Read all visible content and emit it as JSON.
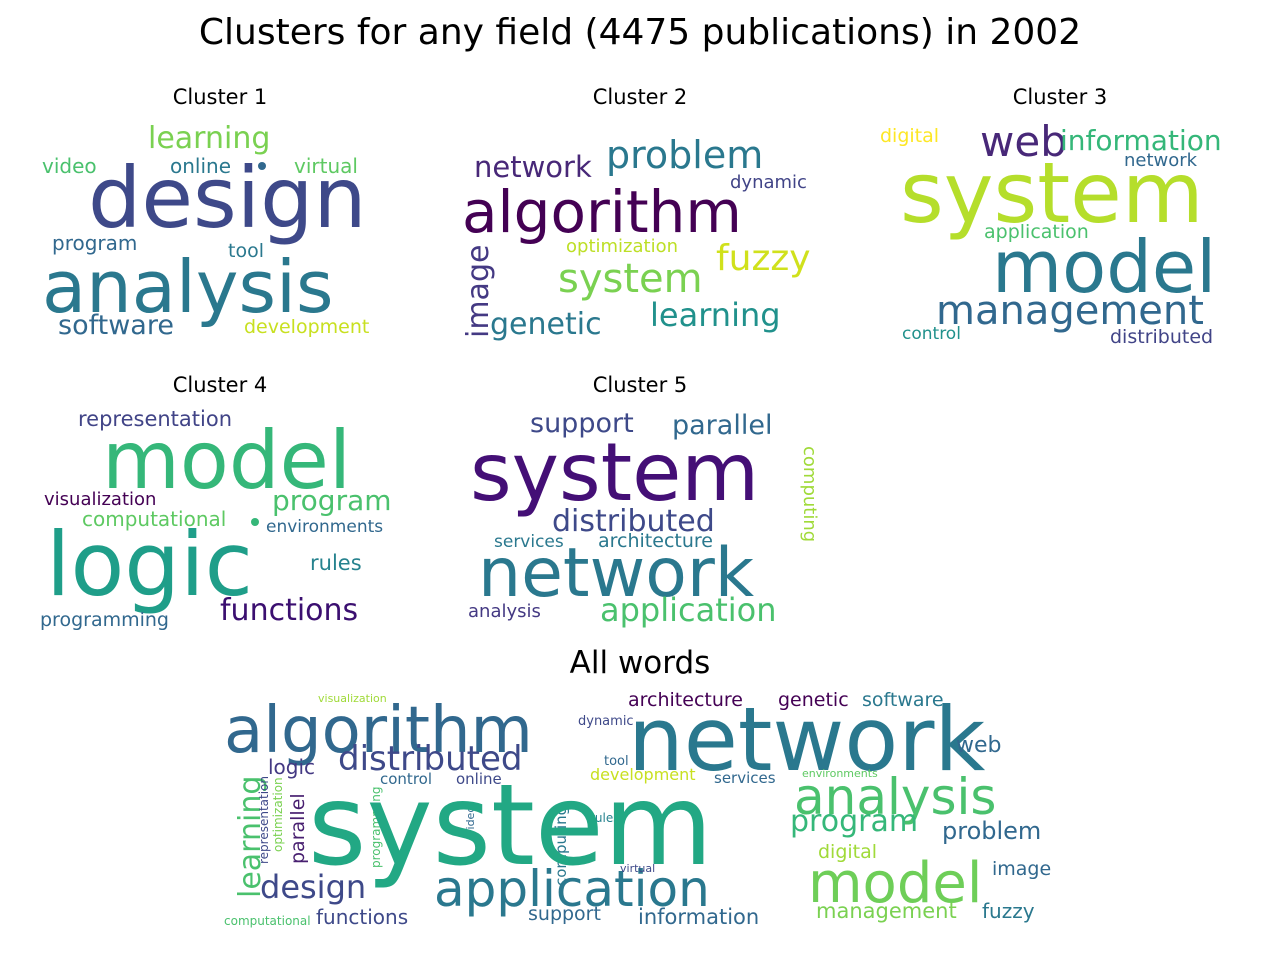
{
  "title": "Clusters for any field (4475 publications) in 2002",
  "panels": [
    {
      "title": "Cluster 1",
      "words": [
        {
          "text": "design",
          "color": "#3e4989"
        },
        {
          "text": "analysis",
          "color": "#2a788e"
        },
        {
          "text": "learning",
          "color": "#7ad151"
        },
        {
          "text": "online",
          "color": "#2a788e"
        },
        {
          "text": "video",
          "color": "#4ac16d"
        },
        {
          "text": "virtual",
          "color": "#5ec962"
        },
        {
          "text": "program",
          "color": "#31688e"
        },
        {
          "text": "tool",
          "color": "#2a788e"
        },
        {
          "text": "software",
          "color": "#31688e"
        },
        {
          "text": "development",
          "color": "#c8e020"
        }
      ]
    },
    {
      "title": "Cluster 2",
      "words": [
        {
          "text": "algorithm",
          "color": "#440154"
        },
        {
          "text": "problem",
          "color": "#2a788e"
        },
        {
          "text": "network",
          "color": "#482878"
        },
        {
          "text": "dynamic",
          "color": "#414487"
        },
        {
          "text": "optimization",
          "color": "#bddf26"
        },
        {
          "text": "fuzzy",
          "color": "#d0e11c"
        },
        {
          "text": "system",
          "color": "#7ad151"
        },
        {
          "text": "image",
          "color": "#443983"
        },
        {
          "text": "genetic",
          "color": "#2a788e"
        },
        {
          "text": "learning",
          "color": "#21918c"
        }
      ]
    },
    {
      "title": "Cluster 3",
      "words": [
        {
          "text": "digital",
          "color": "#fde725"
        },
        {
          "text": "web",
          "color": "#482878"
        },
        {
          "text": "information",
          "color": "#35b779"
        },
        {
          "text": "network",
          "color": "#31688e"
        },
        {
          "text": "system",
          "color": "#b5de2b"
        },
        {
          "text": "application",
          "color": "#4ac16d"
        },
        {
          "text": "model",
          "color": "#2a788e"
        },
        {
          "text": "management",
          "color": "#31688e"
        },
        {
          "text": "control",
          "color": "#21918c"
        },
        {
          "text": "distributed",
          "color": "#414487"
        }
      ]
    },
    {
      "title": "Cluster 4",
      "words": [
        {
          "text": "representation",
          "color": "#414487"
        },
        {
          "text": "model",
          "color": "#35b779"
        },
        {
          "text": "visualization",
          "color": "#440154"
        },
        {
          "text": "program",
          "color": "#4ac16d"
        },
        {
          "text": "computational",
          "color": "#5ec962"
        },
        {
          "text": "environments",
          "color": "#31688e"
        },
        {
          "text": "logic",
          "color": "#1f9e89"
        },
        {
          "text": "rules",
          "color": "#26828e"
        },
        {
          "text": "functions",
          "color": "#3b0f70"
        },
        {
          "text": "programming",
          "color": "#31688e"
        }
      ]
    },
    {
      "title": "Cluster 5",
      "words": [
        {
          "text": "support",
          "color": "#3e4989"
        },
        {
          "text": "parallel",
          "color": "#31688e"
        },
        {
          "text": "computing",
          "color": "#a0da39"
        },
        {
          "text": "system",
          "color": "#440f76"
        },
        {
          "text": "distributed",
          "color": "#3e4989"
        },
        {
          "text": "services",
          "color": "#2a788e"
        },
        {
          "text": "architecture",
          "color": "#2a788e"
        },
        {
          "text": "network",
          "color": "#2a788e"
        },
        {
          "text": "analysis",
          "color": "#443983"
        },
        {
          "text": "application",
          "color": "#4ac16d"
        }
      ]
    },
    {
      "title": "All words",
      "words": [
        {
          "text": "visualization",
          "color": "#a0da39"
        },
        {
          "text": "algorithm",
          "color": "#31688e"
        },
        {
          "text": "dynamic",
          "color": "#3e4989"
        },
        {
          "text": "architecture",
          "color": "#440154"
        },
        {
          "text": "genetic",
          "color": "#440154"
        },
        {
          "text": "software",
          "color": "#2a788e"
        },
        {
          "text": "network",
          "color": "#2a788e"
        },
        {
          "text": "web",
          "color": "#31688e"
        },
        {
          "text": "distributed",
          "color": "#3e4989"
        },
        {
          "text": "logic",
          "color": "#443983"
        },
        {
          "text": "tool",
          "color": "#31688e"
        },
        {
          "text": "development",
          "color": "#c8e020"
        },
        {
          "text": "services",
          "color": "#31688e"
        },
        {
          "text": "environments",
          "color": "#5ec962"
        },
        {
          "text": "control",
          "color": "#31688e"
        },
        {
          "text": "online",
          "color": "#3e4989"
        },
        {
          "text": "analysis",
          "color": "#4ac16d"
        },
        {
          "text": "learning",
          "color": "#4ac16d"
        },
        {
          "text": "representation",
          "color": "#3e4989"
        },
        {
          "text": "optimization",
          "color": "#7ad151"
        },
        {
          "text": "parallel",
          "color": "#481f70"
        },
        {
          "text": "programming",
          "color": "#4ac16d"
        },
        {
          "text": "video",
          "color": "#31688e"
        },
        {
          "text": "computing",
          "color": "#2a788e"
        },
        {
          "text": "rules",
          "color": "#26828e"
        },
        {
          "text": "system",
          "color": "#22a884"
        },
        {
          "text": "program",
          "color": "#35b779"
        },
        {
          "text": "problem",
          "color": "#31688e"
        },
        {
          "text": "digital",
          "color": "#a0da39"
        },
        {
          "text": "model",
          "color": "#6ece58"
        },
        {
          "text": "design",
          "color": "#3e4989"
        },
        {
          "text": "application",
          "color": "#2a788e"
        },
        {
          "text": "virtual",
          "color": "#3e4989"
        },
        {
          "text": "image",
          "color": "#31688e"
        },
        {
          "text": "computational",
          "color": "#4ac16d"
        },
        {
          "text": "functions",
          "color": "#3e4989"
        },
        {
          "text": "support",
          "color": "#31688e"
        },
        {
          "text": "information",
          "color": "#31688e"
        },
        {
          "text": "management",
          "color": "#7ad151"
        },
        {
          "text": "fuzzy",
          "color": "#2a788e"
        }
      ]
    }
  ]
}
